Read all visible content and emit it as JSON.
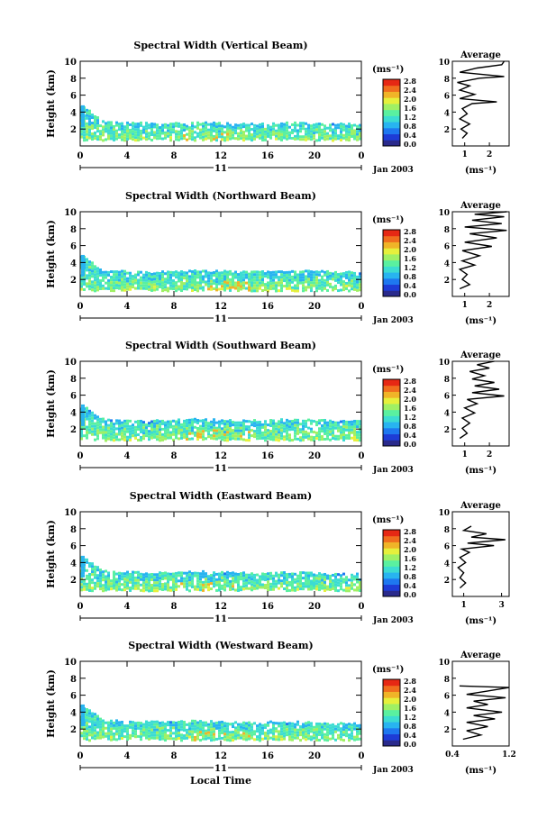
{
  "colors": {
    "colormap": [
      "#2a2a8c",
      "#1e3cd6",
      "#1e78f0",
      "#28b4f0",
      "#3cdcd2",
      "#5af0a0",
      "#a0f064",
      "#e6f03c",
      "#f0b428",
      "#f06e1e",
      "#e62814"
    ]
  },
  "chart_data": [
    {
      "type": "heatmap",
      "title": "Spectral Width (Vertical Beam)",
      "ylabel": "Height (km)",
      "ylim": [
        0,
        10
      ],
      "y_ticks": [
        "2",
        "4",
        "6",
        "8",
        "10"
      ],
      "xlim": [
        0,
        24
      ],
      "x_ticks": [
        "0",
        "4",
        "8",
        "12",
        "16",
        "20",
        "0"
      ],
      "day_label": "11",
      "date_label": "Jan 2003",
      "colorbar": {
        "unit_label": "(ms⁻¹)",
        "ticks": [
          "0.0",
          "0.4",
          "0.8",
          "1.2",
          "1.6",
          "2.0",
          "2.4",
          "2.8"
        ],
        "range": [
          0,
          2.8
        ]
      },
      "data_top_km": [
        4.8,
        2.9,
        2.8,
        2.7,
        2.7,
        2.8,
        2.8,
        2.6,
        2.7,
        2.8,
        2.6,
        2.7,
        2.5
      ],
      "data_bottom_km": 0.8,
      "average_profile": {
        "title": "Average",
        "xlabel": "(ms⁻¹)",
        "x_ticks": [
          "1",
          "2"
        ],
        "xlim": [
          0.5,
          2.8
        ],
        "y_ticks": [
          "2",
          "4",
          "6",
          "8",
          "10"
        ],
        "ylim": [
          0,
          10
        ],
        "points": [
          [
            0.9,
            0.9
          ],
          [
            1.1,
            1.5
          ],
          [
            0.85,
            2.0
          ],
          [
            1.2,
            2.6
          ],
          [
            0.8,
            3.2
          ],
          [
            1.1,
            3.8
          ],
          [
            0.9,
            4.4
          ],
          [
            1.3,
            5.0
          ],
          [
            2.3,
            5.2
          ],
          [
            0.8,
            5.6
          ],
          [
            1.4,
            6.1
          ],
          [
            0.8,
            6.6
          ],
          [
            1.2,
            7.1
          ],
          [
            0.7,
            7.5
          ],
          [
            1.6,
            8.0
          ],
          [
            2.6,
            8.2
          ],
          [
            0.8,
            8.7
          ],
          [
            1.5,
            9.2
          ],
          [
            2.5,
            9.6
          ],
          [
            2.6,
            10.0
          ]
        ]
      }
    },
    {
      "type": "heatmap",
      "title": "Spectral Width (Northward Beam)",
      "ylabel": "Height (km)",
      "ylim": [
        0,
        10
      ],
      "y_ticks": [
        "2",
        "4",
        "6",
        "8",
        "10"
      ],
      "xlim": [
        0,
        24
      ],
      "x_ticks": [
        "0",
        "4",
        "8",
        "12",
        "16",
        "20",
        "0"
      ],
      "day_label": "11",
      "date_label": "Jan 2003",
      "colorbar": {
        "unit_label": "(ms⁻¹)",
        "ticks": [
          "0.0",
          "0.4",
          "0.8",
          "1.2",
          "1.6",
          "2.0",
          "2.4",
          "2.8"
        ],
        "range": [
          0,
          2.8
        ]
      },
      "data_top_km": [
        4.9,
        3.0,
        3.0,
        2.9,
        3.0,
        3.1,
        3.0,
        2.9,
        3.0,
        3.1,
        3.0,
        2.9,
        2.9
      ],
      "data_bottom_km": 0.8,
      "average_profile": {
        "title": "Average",
        "xlabel": "(ms⁻¹)",
        "x_ticks": [
          "1",
          "2"
        ],
        "xlim": [
          0.5,
          2.8
        ],
        "y_ticks": [
          "2",
          "4",
          "6",
          "8",
          "10"
        ],
        "ylim": [
          0,
          10
        ],
        "points": [
          [
            0.8,
            0.9
          ],
          [
            1.2,
            1.4
          ],
          [
            0.9,
            2.0
          ],
          [
            1.1,
            2.6
          ],
          [
            0.8,
            3.2
          ],
          [
            1.4,
            3.7
          ],
          [
            0.9,
            4.2
          ],
          [
            1.6,
            4.8
          ],
          [
            0.9,
            5.4
          ],
          [
            2.1,
            5.9
          ],
          [
            1.0,
            6.4
          ],
          [
            2.3,
            6.9
          ],
          [
            1.2,
            7.4
          ],
          [
            2.7,
            7.8
          ],
          [
            1.0,
            8.2
          ],
          [
            2.5,
            8.6
          ],
          [
            1.3,
            9.0
          ],
          [
            2.6,
            9.4
          ],
          [
            1.4,
            9.7
          ],
          [
            2.7,
            10.0
          ]
        ]
      }
    },
    {
      "type": "heatmap",
      "title": "Spectral Width (Southward Beam)",
      "ylabel": "Height (km)",
      "ylim": [
        0,
        10
      ],
      "y_ticks": [
        "2",
        "4",
        "6",
        "8",
        "10"
      ],
      "xlim": [
        0,
        24
      ],
      "x_ticks": [
        "0",
        "4",
        "8",
        "12",
        "16",
        "20",
        "0"
      ],
      "day_label": "11",
      "date_label": "Jan 2003",
      "colorbar": {
        "unit_label": "(ms⁻¹)",
        "ticks": [
          "0.0",
          "0.4",
          "0.8",
          "1.2",
          "1.6",
          "2.0",
          "2.4",
          "2.8"
        ],
        "range": [
          0,
          2.8
        ]
      },
      "data_top_km": [
        4.9,
        3.1,
        3.0,
        3.0,
        3.1,
        3.2,
        3.1,
        3.0,
        3.1,
        3.2,
        3.1,
        3.0,
        3.0
      ],
      "data_bottom_km": 0.8,
      "average_profile": {
        "title": "Average",
        "xlabel": "(ms⁻¹)",
        "x_ticks": [
          "1",
          "2"
        ],
        "xlim": [
          0.5,
          2.8
        ],
        "y_ticks": [
          "2",
          "4",
          "6",
          "8",
          "10"
        ],
        "ylim": [
          0,
          10
        ],
        "points": [
          [
            0.8,
            0.9
          ],
          [
            1.1,
            1.5
          ],
          [
            0.9,
            2.1
          ],
          [
            1.2,
            2.7
          ],
          [
            0.9,
            3.3
          ],
          [
            1.4,
            3.9
          ],
          [
            1.0,
            4.5
          ],
          [
            1.5,
            5.0
          ],
          [
            1.1,
            5.5
          ],
          [
            2.6,
            5.9
          ],
          [
            1.3,
            6.3
          ],
          [
            2.4,
            6.7
          ],
          [
            1.4,
            7.1
          ],
          [
            2.2,
            7.5
          ],
          [
            1.3,
            7.9
          ],
          [
            1.8,
            8.3
          ],
          [
            1.2,
            8.8
          ],
          [
            2.0,
            9.2
          ],
          [
            1.5,
            9.6
          ],
          [
            2.2,
            10.0
          ]
        ]
      }
    },
    {
      "type": "heatmap",
      "title": "Spectral Width (Eastward Beam)",
      "ylabel": "Height (km)",
      "ylim": [
        0,
        10
      ],
      "y_ticks": [
        "2",
        "4",
        "6",
        "8",
        "10"
      ],
      "xlim": [
        0,
        24
      ],
      "x_ticks": [
        "0",
        "4",
        "8",
        "12",
        "16",
        "20",
        "0"
      ],
      "day_label": "11",
      "date_label": "Jan 2003",
      "colorbar": {
        "unit_label": "(ms⁻¹)",
        "ticks": [
          "0.0",
          "0.4",
          "0.8",
          "1.2",
          "1.6",
          "2.0",
          "2.4",
          "2.8"
        ],
        "range": [
          0,
          2.8
        ]
      },
      "data_top_km": [
        4.8,
        3.0,
        2.9,
        2.8,
        2.9,
        3.0,
        2.9,
        2.8,
        2.8,
        2.9,
        2.8,
        2.7,
        2.7
      ],
      "data_bottom_km": 0.8,
      "average_profile": {
        "title": "Average",
        "xlabel": "(ms⁻¹)",
        "x_ticks": [
          "1",
          "3"
        ],
        "xlim": [
          0.4,
          3.4
        ],
        "y_ticks": [
          "2",
          "4",
          "6",
          "8",
          "10"
        ],
        "ylim": [
          0,
          10
        ],
        "points": [
          [
            0.8,
            1.0
          ],
          [
            1.1,
            1.6
          ],
          [
            0.8,
            2.2
          ],
          [
            1.0,
            2.8
          ],
          [
            0.7,
            3.4
          ],
          [
            1.1,
            4.0
          ],
          [
            0.8,
            4.6
          ],
          [
            1.3,
            5.2
          ],
          [
            0.9,
            5.6
          ],
          [
            2.6,
            6.0
          ],
          [
            1.2,
            6.3
          ],
          [
            3.2,
            6.7
          ],
          [
            1.4,
            7.0
          ],
          [
            2.2,
            7.4
          ],
          [
            1.0,
            7.8
          ],
          [
            1.4,
            8.3
          ]
        ]
      }
    },
    {
      "type": "heatmap",
      "title": "Spectral Width (Westward Beam)",
      "ylabel": "Height (km)",
      "ylim": [
        0,
        10
      ],
      "y_ticks": [
        "2",
        "4",
        "6",
        "8",
        "10"
      ],
      "xlim": [
        0,
        24
      ],
      "x_ticks": [
        "0",
        "4",
        "8",
        "12",
        "16",
        "20",
        "0"
      ],
      "xlabel": "Local Time",
      "day_label": "11",
      "date_label": "Jan 2003",
      "colorbar": {
        "unit_label": "(ms⁻¹)",
        "ticks": [
          "0.0",
          "0.4",
          "0.8",
          "1.2",
          "1.6",
          "2.0",
          "2.4",
          "2.8"
        ],
        "range": [
          0,
          2.8
        ]
      },
      "data_top_km": [
        4.9,
        3.0,
        3.0,
        2.9,
        2.9,
        3.0,
        2.9,
        2.8,
        2.9,
        2.9,
        2.8,
        2.7,
        2.7
      ],
      "data_bottom_km": 0.8,
      "average_profile": {
        "title": "Average",
        "xlabel": "(ms⁻¹)",
        "x_ticks": [
          "0.4",
          "1.2"
        ],
        "xlim": [
          0.4,
          1.2
        ],
        "y_ticks": [
          "2",
          "4",
          "6",
          "8",
          "10"
        ],
        "ylim": [
          0,
          10
        ],
        "points": [
          [
            0.55,
            0.8
          ],
          [
            0.8,
            1.3
          ],
          [
            0.6,
            1.8
          ],
          [
            0.9,
            2.3
          ],
          [
            0.6,
            2.8
          ],
          [
            1.0,
            3.2
          ],
          [
            0.7,
            3.6
          ],
          [
            1.1,
            4.0
          ],
          [
            0.6,
            4.5
          ],
          [
            0.9,
            4.9
          ],
          [
            0.7,
            5.3
          ],
          [
            1.15,
            5.7
          ],
          [
            0.6,
            6.1
          ],
          [
            0.9,
            6.5
          ],
          [
            1.2,
            6.9
          ],
          [
            0.5,
            7.1
          ]
        ]
      }
    }
  ]
}
